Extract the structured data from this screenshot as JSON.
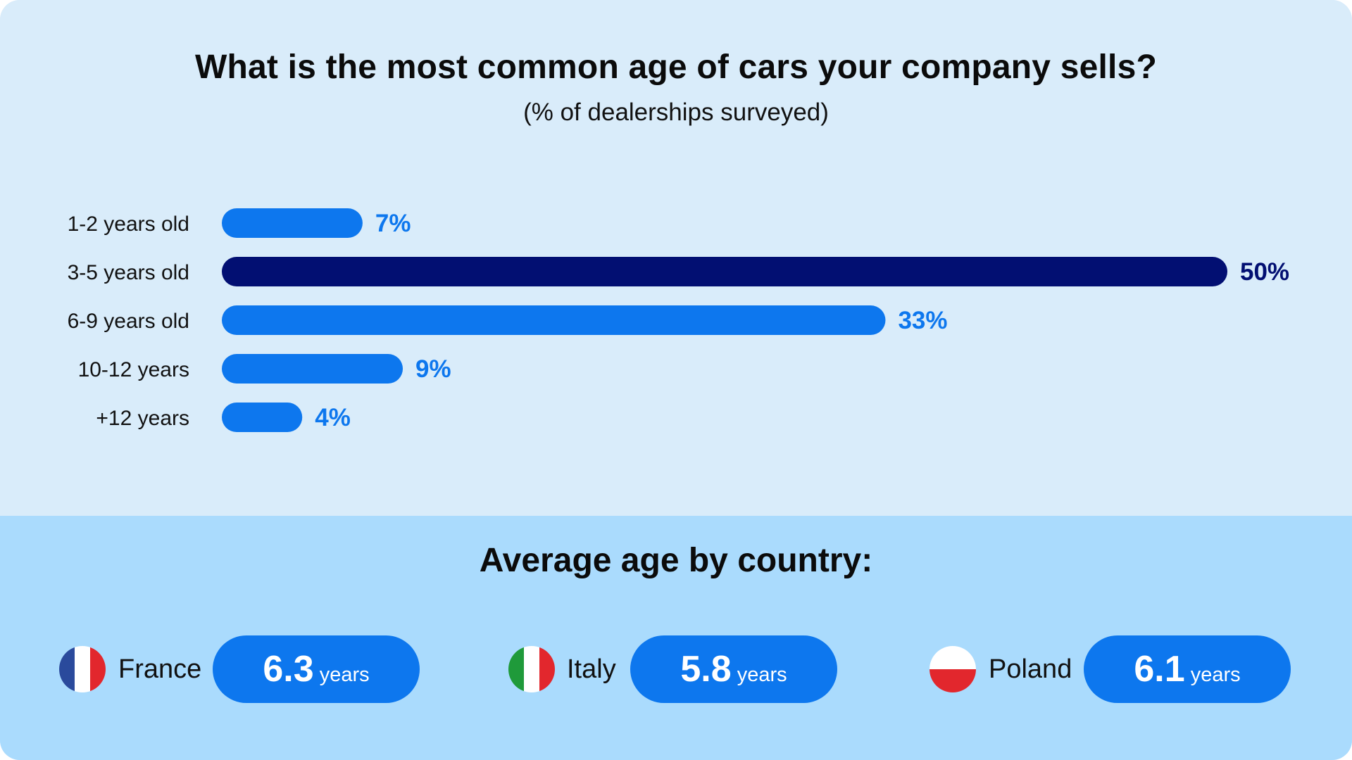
{
  "chart_data": {
    "type": "bar",
    "orientation": "horizontal",
    "title": "What is the most common age of cars your company sells?",
    "subtitle": "(% of dealerships surveyed)",
    "categories": [
      "1-2 years old",
      "3-5 years old",
      "6-9 years old",
      "10-12 years",
      "+12 years"
    ],
    "values": [
      7,
      50,
      33,
      9,
      4
    ],
    "value_labels": [
      "7%",
      "50%",
      "33%",
      "9%",
      "4%"
    ],
    "highlight_index": 1,
    "xlim": [
      0,
      50
    ],
    "grid": false,
    "colors": {
      "bar": "#0d77ee",
      "highlight": "#020f72",
      "label": "#0d77ee",
      "highlight_label": "#020f72",
      "category_text": "#111111"
    }
  },
  "country_section": {
    "heading": "Average age by country:",
    "countries": [
      {
        "name": "France",
        "value": "6.3",
        "unit": "years",
        "flag": "france-flag-icon"
      },
      {
        "name": "Italy",
        "value": "5.8",
        "unit": "years",
        "flag": "italy-flag-icon"
      },
      {
        "name": "Poland",
        "value": "6.1",
        "unit": "years",
        "flag": "poland-flag-icon"
      }
    ]
  },
  "colors": {
    "top_background": "#d9ecfa",
    "bottom_background": "#aadbfd",
    "pill": "#0d77ee",
    "france_blue": "#2a4a9c",
    "france_white": "#ffffff",
    "france_red": "#e2272d",
    "italy_green": "#1f9a3a",
    "italy_white": "#ffffff",
    "italy_red": "#e2272d",
    "poland_white": "#ffffff",
    "poland_red": "#e2272d"
  }
}
